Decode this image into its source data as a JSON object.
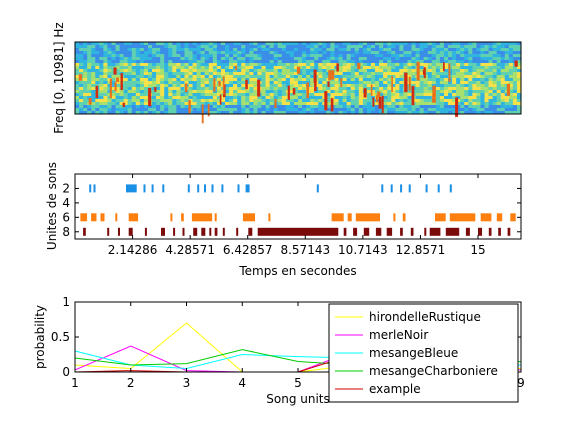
{
  "chart_data": [
    {
      "type": "heatmap",
      "title": "",
      "ylabel": "Freq [0, 10981] Hz",
      "xlabel": "",
      "description_colormap": "jet"
    },
    {
      "type": "scatter",
      "ylabel": "Unites de sons",
      "xlabel": "Temps en secondes",
      "xticks": [
        "2.14286",
        "4.28571",
        "6.42857",
        "8.57143",
        "10.7143",
        "12.8571",
        "15"
      ],
      "xtick_values": [
        2.14286,
        4.28571,
        6.42857,
        8.57143,
        10.7143,
        12.8571,
        15
      ],
      "xlim": [
        0,
        16.6
      ],
      "yticks": [
        "2",
        "4",
        "6",
        "8"
      ],
      "ytick_values": [
        2,
        4,
        6,
        8
      ],
      "ylim": [
        0,
        9
      ],
      "y_reversed": true,
      "rows": [
        {
          "y": 2,
          "color": "#1a8fe6",
          "segments": [
            [
              0.53,
              0.59
            ],
            [
              0.69,
              0.73
            ],
            [
              1.9,
              2.3
            ],
            [
              2.55,
              2.59
            ],
            [
              2.85,
              2.89
            ],
            [
              3.25,
              3.29
            ],
            [
              4.2,
              4.24
            ],
            [
              4.55,
              4.59
            ],
            [
              4.8,
              4.85
            ],
            [
              5.08,
              5.13
            ],
            [
              5.45,
              5.5
            ],
            [
              6.05,
              6.09
            ],
            [
              6.35,
              6.5
            ],
            [
              9.0,
              9.04
            ],
            [
              11.4,
              11.44
            ],
            [
              11.75,
              11.79
            ],
            [
              12.1,
              12.14
            ],
            [
              12.42,
              12.46
            ],
            [
              13.05,
              13.09
            ],
            [
              13.5,
              13.54
            ],
            [
              13.95,
              14.0
            ]
          ]
        },
        {
          "y": 6,
          "color": "#ff7f0e",
          "segments": [
            [
              0.2,
              0.45
            ],
            [
              0.6,
              0.8
            ],
            [
              0.95,
              1.1
            ],
            [
              1.5,
              1.55
            ],
            [
              2.0,
              2.35
            ],
            [
              3.55,
              3.6
            ],
            [
              3.95,
              4.05
            ],
            [
              4.35,
              5.1
            ],
            [
              5.2,
              5.25
            ],
            [
              6.25,
              6.7
            ],
            [
              7.2,
              7.25
            ],
            [
              9.55,
              10.0
            ],
            [
              10.15,
              10.3
            ],
            [
              10.45,
              11.35
            ],
            [
              11.85,
              11.9
            ],
            [
              12.2,
              12.3
            ],
            [
              13.4,
              13.8
            ],
            [
              13.95,
              14.9
            ],
            [
              15.1,
              15.5
            ],
            [
              15.7,
              15.9
            ],
            [
              16.2,
              16.4
            ]
          ]
        },
        {
          "y": 8,
          "color": "#7b0a0a",
          "segments": [
            [
              0.3,
              0.4
            ],
            [
              1.2,
              1.24
            ],
            [
              1.6,
              1.65
            ],
            [
              2.0,
              2.15
            ],
            [
              2.6,
              2.65
            ],
            [
              3.2,
              3.35
            ],
            [
              3.65,
              3.7
            ],
            [
              4.0,
              4.05
            ],
            [
              4.4,
              4.55
            ],
            [
              4.7,
              4.85
            ],
            [
              5.0,
              5.05
            ],
            [
              5.2,
              5.3
            ],
            [
              5.5,
              5.55
            ],
            [
              6.0,
              6.05
            ],
            [
              6.45,
              6.6
            ],
            [
              6.8,
              9.8
            ],
            [
              10.0,
              10.1
            ],
            [
              10.35,
              10.5
            ],
            [
              10.75,
              10.95
            ],
            [
              11.2,
              11.4
            ],
            [
              11.6,
              11.8
            ],
            [
              12.1,
              12.2
            ],
            [
              12.5,
              12.6
            ],
            [
              13.0,
              13.05
            ],
            [
              13.2,
              13.6
            ],
            [
              13.8,
              14.3
            ],
            [
              14.55,
              14.7
            ],
            [
              15.0,
              15.15
            ],
            [
              15.4,
              15.5
            ],
            [
              15.75,
              15.85
            ],
            [
              16.1,
              16.2
            ]
          ]
        }
      ]
    },
    {
      "type": "line",
      "ylabel": "probability",
      "xlabel": "Song units",
      "x": [
        1,
        2,
        3,
        4,
        5,
        6,
        7,
        8,
        9
      ],
      "xlim": [
        1,
        9
      ],
      "ylim": [
        0,
        1
      ],
      "xticks": [
        "1",
        "2",
        "3",
        "4",
        "5",
        "9"
      ],
      "xtick_values": [
        1,
        2,
        3,
        4,
        5,
        9
      ],
      "yticks": [
        "0",
        "0.5",
        "1"
      ],
      "ytick_values": [
        0,
        0.5,
        1
      ],
      "legend_position": "top-right, overlapping plot",
      "series": [
        {
          "name": "hirondelleRustique",
          "color": "#ffff00",
          "values": [
            0.1,
            0.05,
            0.7,
            0.0,
            0.0,
            0.1,
            0.05,
            0.05,
            0.05
          ]
        },
        {
          "name": "merleNoir",
          "color": "#ff00ff",
          "values": [
            0.03,
            0.37,
            0.02,
            0.0,
            0.0,
            0.3,
            0.1,
            0.05,
            0.03
          ]
        },
        {
          "name": "mesangeBleue",
          "color": "#00ffff",
          "values": [
            0.3,
            0.1,
            0.05,
            0.25,
            0.22,
            0.2,
            0.1,
            0.05,
            0.1
          ]
        },
        {
          "name": "mesangeCharboniere",
          "color": "#00cc00",
          "values": [
            0.2,
            0.1,
            0.12,
            0.32,
            0.15,
            0.1,
            0.1,
            0.1,
            0.15
          ]
        },
        {
          "name": "example",
          "color": "#cc0000",
          "values": [
            0.0,
            0.02,
            0.0,
            0.0,
            0.0,
            0.25,
            0.1,
            0.0,
            0.0
          ]
        }
      ]
    }
  ]
}
